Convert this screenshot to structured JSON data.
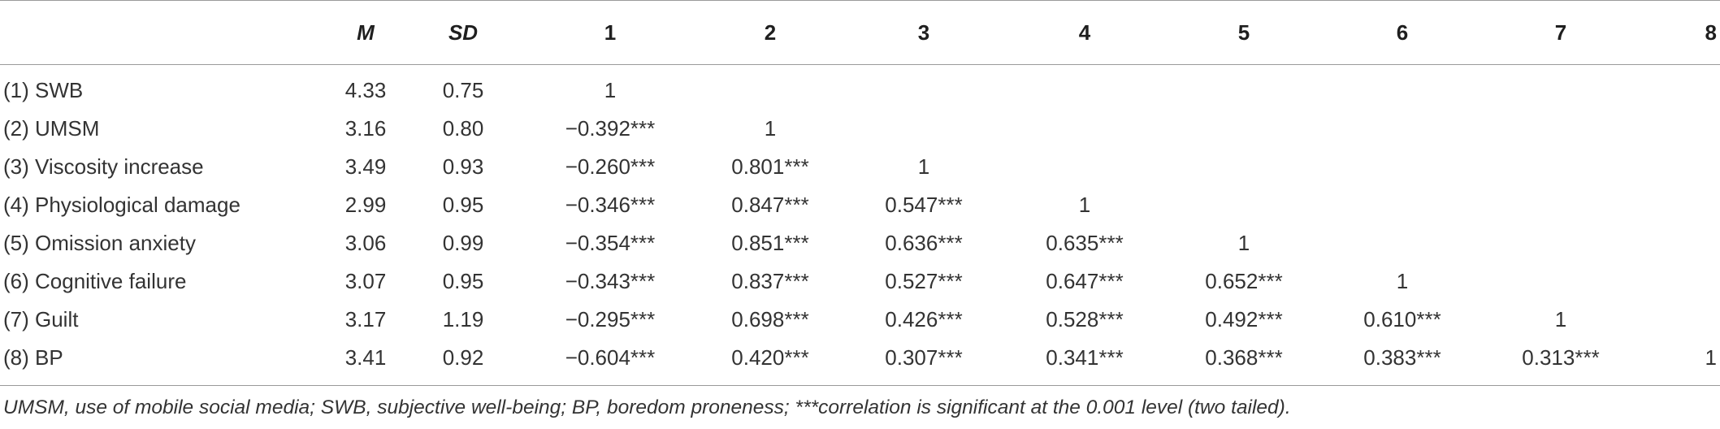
{
  "table": {
    "headers": [
      "",
      "M",
      "SD",
      "1",
      "2",
      "3",
      "4",
      "5",
      "6",
      "7",
      "8"
    ],
    "rows": [
      {
        "label": "(1) SWB",
        "m": "4.33",
        "sd": "0.75",
        "c": [
          "1",
          "",
          "",
          "",
          "",
          "",
          "",
          ""
        ]
      },
      {
        "label": "(2) UMSM",
        "m": "3.16",
        "sd": "0.80",
        "c": [
          "−0.392***",
          "1",
          "",
          "",
          "",
          "",
          "",
          ""
        ]
      },
      {
        "label": "(3) Viscosity increase",
        "m": "3.49",
        "sd": "0.93",
        "c": [
          "−0.260***",
          "0.801***",
          "1",
          "",
          "",
          "",
          "",
          ""
        ]
      },
      {
        "label": "(4) Physiological damage",
        "m": "2.99",
        "sd": "0.95",
        "c": [
          "−0.346***",
          "0.847***",
          "0.547***",
          "1",
          "",
          "",
          "",
          ""
        ]
      },
      {
        "label": "(5) Omission anxiety",
        "m": "3.06",
        "sd": "0.99",
        "c": [
          "−0.354***",
          "0.851***",
          "0.636***",
          "0.635***",
          "1",
          "",
          "",
          ""
        ]
      },
      {
        "label": "(6) Cognitive failure",
        "m": "3.07",
        "sd": "0.95",
        "c": [
          "−0.343***",
          "0.837***",
          "0.527***",
          "0.647***",
          "0.652***",
          "1",
          "",
          ""
        ]
      },
      {
        "label": "(7) Guilt",
        "m": "3.17",
        "sd": "1.19",
        "c": [
          "−0.295***",
          "0.698***",
          "0.426***",
          "0.528***",
          "0.492***",
          "0.610***",
          "1",
          ""
        ]
      },
      {
        "label": "(8) BP",
        "m": "3.41",
        "sd": "0.92",
        "c": [
          "−0.604***",
          "0.420***",
          "0.307***",
          "0.341***",
          "0.368***",
          "0.383***",
          "0.313***",
          "1"
        ]
      }
    ]
  },
  "note": "UMSM, use of mobile social media; SWB, subjective well-being; BP, boredom proneness; ***correlation is significant at the 0.001 level (two tailed)."
}
